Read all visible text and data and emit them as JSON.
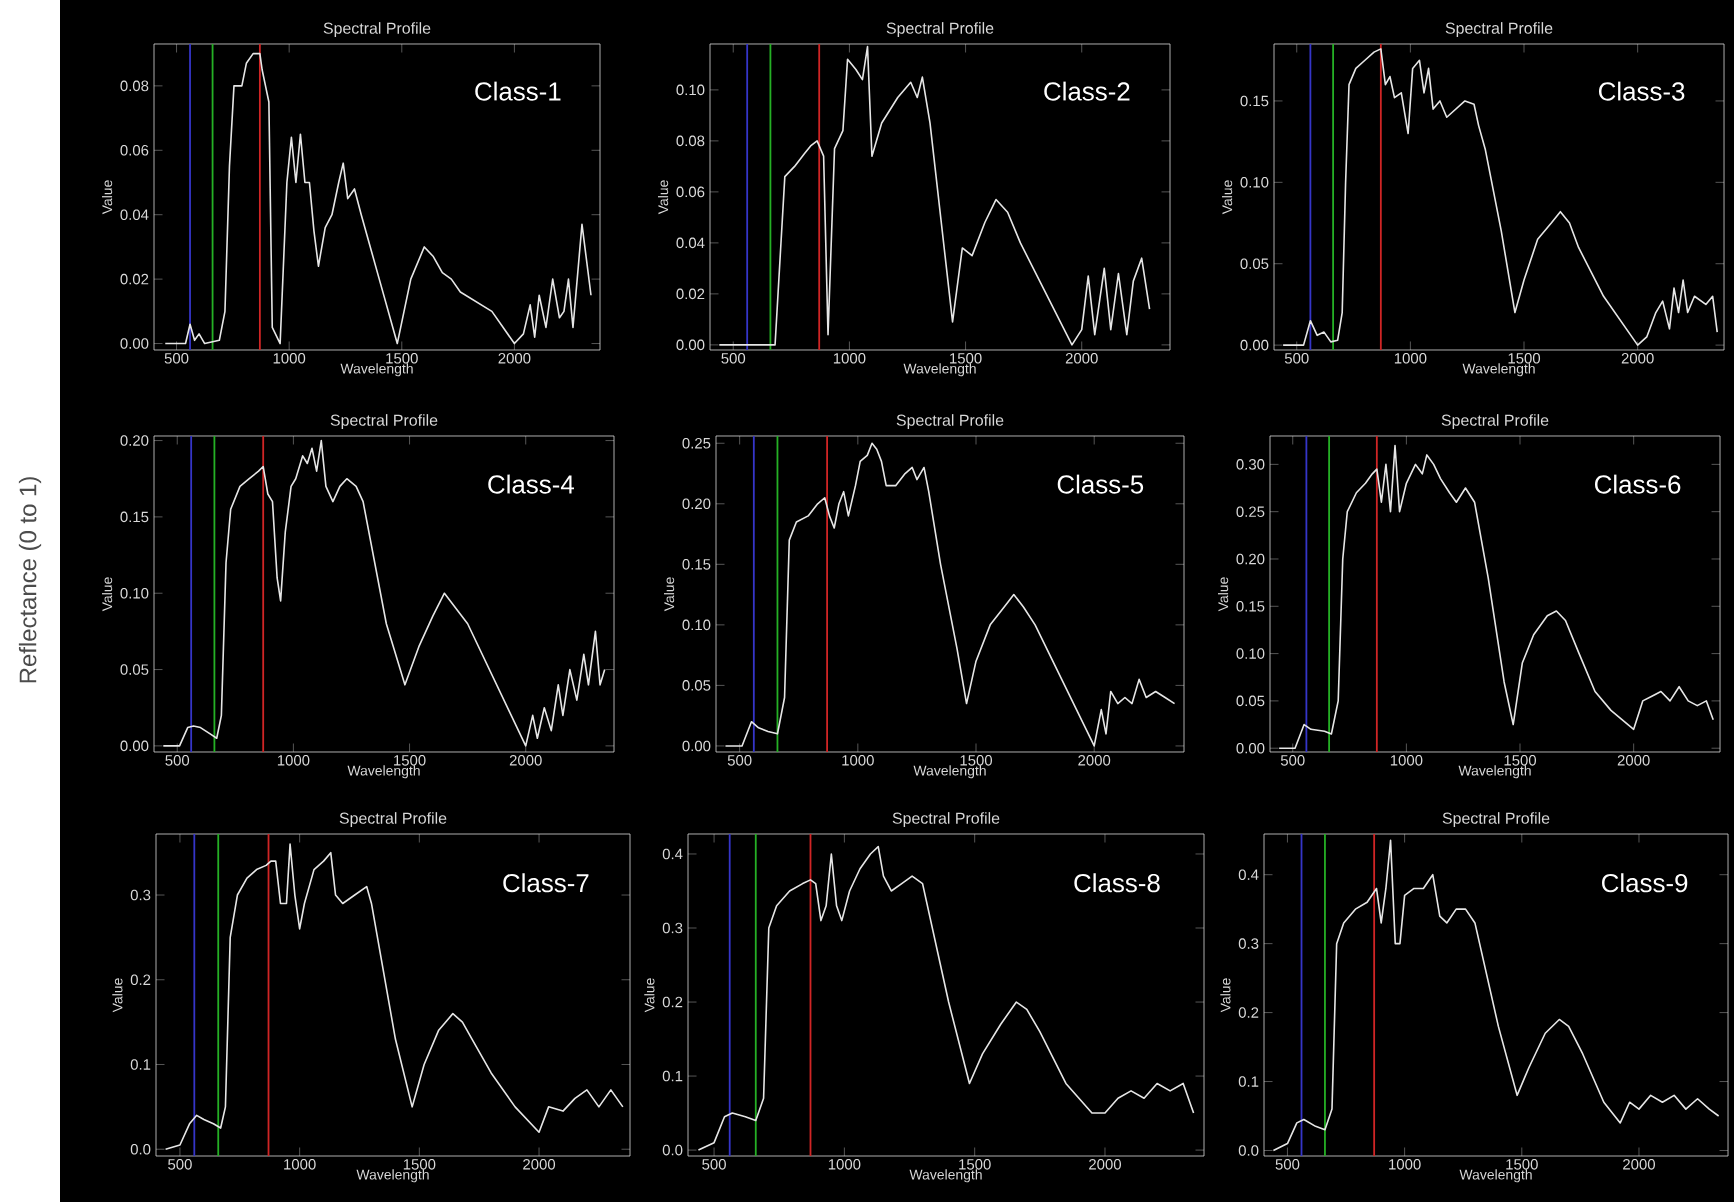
{
  "chart_data": [
    {
      "type": "other",
      "ylabel": "Reflectance (0 to 1)"
    },
    {
      "type": "line",
      "title": "Spectral Profile",
      "xlabel": "Wavelength",
      "ylabel": "Value",
      "annotations": [
        "Class-1"
      ],
      "xlim": [
        400,
        2380
      ],
      "ylim": [
        -0.002,
        0.093
      ],
      "xticks": [
        500,
        1000,
        1500,
        2000
      ],
      "yticks": [
        {
          "value": 0,
          "label": "0.00"
        },
        {
          "value": 0.02,
          "label": "0.02"
        },
        {
          "value": 0.04,
          "label": "0.04"
        },
        {
          "value": 0.06,
          "label": "0.06"
        },
        {
          "value": 0.08,
          "label": "0.08"
        }
      ],
      "ref_lines": [
        {
          "axis": "x",
          "value": 560,
          "color": "#3535c8"
        },
        {
          "axis": "x",
          "value": 660,
          "color": "#25b025"
        },
        {
          "axis": "x",
          "value": 870,
          "color": "#d02525"
        }
      ],
      "x": [
        450,
        540,
        560,
        580,
        600,
        625,
        690,
        715,
        735,
        755,
        790,
        810,
        840,
        870,
        880,
        895,
        910,
        925,
        960,
        990,
        1010,
        1030,
        1050,
        1070,
        1090,
        1110,
        1130,
        1160,
        1190,
        1220,
        1240,
        1260,
        1290,
        1320,
        1400,
        1480,
        1510,
        1540,
        1570,
        1600,
        1640,
        1680,
        1720,
        1760,
        1900,
        2000,
        2040,
        2070,
        2090,
        2110,
        2140,
        2170,
        2200,
        2220,
        2240,
        2260,
        2300,
        2340
      ],
      "series": [
        {
          "color": "#e6e6e6",
          "values": [
            0,
            0,
            0.006,
            0.001,
            0.003,
            0,
            0.001,
            0.01,
            0.055,
            0.08,
            0.08,
            0.087,
            0.09,
            0.09,
            0.085,
            0.08,
            0.075,
            0.005,
            0,
            0.05,
            0.064,
            0.05,
            0.065,
            0.05,
            0.05,
            0.035,
            0.024,
            0.036,
            0.04,
            0.05,
            0.056,
            0.045,
            0.048,
            0.04,
            0.02,
            0,
            0.01,
            0.02,
            0.025,
            0.03,
            0.027,
            0.022,
            0.02,
            0.016,
            0.01,
            0,
            0.003,
            0.012,
            0.002,
            0.015,
            0.005,
            0.02,
            0.008,
            0.01,
            0.02,
            0.005,
            0.037,
            0.015
          ]
        }
      ]
    },
    {
      "type": "line",
      "title": "Spectral Profile",
      "xlabel": "Wavelength",
      "ylabel": "Value",
      "annotations": [
        "Class-2"
      ],
      "xlim": [
        400,
        2380
      ],
      "ylim": [
        -0.002,
        0.118
      ],
      "xticks": [
        500,
        1000,
        1500,
        2000
      ],
      "yticks": [
        {
          "value": 0,
          "label": "0.00"
        },
        {
          "value": 0.02,
          "label": "0.02"
        },
        {
          "value": 0.04,
          "label": "0.04"
        },
        {
          "value": 0.06,
          "label": "0.06"
        },
        {
          "value": 0.08,
          "label": "0.08"
        },
        {
          "value": 0.1,
          "label": "0.10"
        }
      ],
      "ref_lines": [
        {
          "axis": "x",
          "value": 560,
          "color": "#3535c8"
        },
        {
          "axis": "x",
          "value": 660,
          "color": "#25b025"
        },
        {
          "axis": "x",
          "value": 870,
          "color": "#d02525"
        }
      ],
      "x": [
        440,
        680,
        722,
        764,
        806,
        833,
        861,
        889,
        908,
        936,
        972,
        992,
        1028,
        1056,
        1078,
        1097,
        1139,
        1208,
        1264,
        1292,
        1314,
        1347,
        1444,
        1486,
        1528,
        1583,
        1631,
        1681,
        1736,
        1958,
        2000,
        2028,
        2056,
        2097,
        2125,
        2158,
        2194,
        2222,
        2258,
        2292
      ],
      "series": [
        {
          "color": "#e6e6e6",
          "values": [
            0,
            0,
            0.066,
            0.07,
            0.075,
            0.078,
            0.08,
            0.074,
            0.004,
            0.077,
            0.084,
            0.112,
            0.108,
            0.104,
            0.117,
            0.074,
            0.087,
            0.097,
            0.103,
            0.097,
            0.105,
            0.087,
            0.009,
            0.038,
            0.035,
            0.048,
            0.057,
            0.052,
            0.04,
            0,
            0.006,
            0.027,
            0.004,
            0.03,
            0.006,
            0.028,
            0.004,
            0.025,
            0.034,
            0.014
          ]
        }
      ]
    },
    {
      "type": "line",
      "title": "Spectral Profile",
      "xlabel": "Wavelength",
      "ylabel": "Value",
      "annotations": [
        "Class-3"
      ],
      "xlim": [
        400,
        2380
      ],
      "ylim": [
        -0.003,
        0.185
      ],
      "xticks": [
        500,
        1000,
        1500,
        2000
      ],
      "yticks": [
        {
          "value": 0,
          "label": "0.00"
        },
        {
          "value": 0.05,
          "label": "0.05"
        },
        {
          "value": 0.1,
          "label": "0.10"
        },
        {
          "value": 0.15,
          "label": "0.15"
        }
      ],
      "ref_lines": [
        {
          "axis": "x",
          "value": 560,
          "color": "#3535c8"
        },
        {
          "axis": "x",
          "value": 660,
          "color": "#25b025"
        },
        {
          "axis": "x",
          "value": 870,
          "color": "#d02525"
        }
      ],
      "x": [
        440,
        530,
        560,
        590,
        620,
        650,
        680,
        700,
        715,
        730,
        760,
        800,
        840,
        870,
        890,
        910,
        930,
        960,
        990,
        1010,
        1040,
        1060,
        1080,
        1100,
        1130,
        1160,
        1200,
        1240,
        1280,
        1300,
        1330,
        1400,
        1460,
        1500,
        1560,
        1620,
        1660,
        1700,
        1740,
        1850,
        2000,
        2040,
        2080,
        2110,
        2140,
        2160,
        2180,
        2200,
        2220,
        2250,
        2300,
        2330,
        2350
      ],
      "series": [
        {
          "color": "#e6e6e6",
          "values": [
            0,
            0,
            0.015,
            0.006,
            0.008,
            0.002,
            0.003,
            0.02,
            0.1,
            0.16,
            0.17,
            0.175,
            0.18,
            0.182,
            0.16,
            0.165,
            0.152,
            0.155,
            0.13,
            0.17,
            0.175,
            0.155,
            0.17,
            0.145,
            0.15,
            0.14,
            0.145,
            0.15,
            0.148,
            0.135,
            0.12,
            0.07,
            0.02,
            0.04,
            0.065,
            0.075,
            0.082,
            0.075,
            0.06,
            0.03,
            0,
            0.005,
            0.02,
            0.027,
            0.01,
            0.035,
            0.02,
            0.04,
            0.02,
            0.03,
            0.025,
            0.03,
            0.008
          ]
        }
      ]
    },
    {
      "type": "line",
      "title": "Spectral Profile",
      "xlabel": "Wavelength",
      "ylabel": "Value",
      "annotations": [
        "Class-4"
      ],
      "xlim": [
        400,
        2380
      ],
      "ylim": [
        -0.004,
        0.203
      ],
      "xticks": [
        500,
        1000,
        1500,
        2000
      ],
      "yticks": [
        {
          "value": 0,
          "label": "0.00"
        },
        {
          "value": 0.05,
          "label": "0.05"
        },
        {
          "value": 0.1,
          "label": "0.10"
        },
        {
          "value": 0.15,
          "label": "0.15"
        },
        {
          "value": 0.2,
          "label": "0.20"
        }
      ],
      "ref_lines": [
        {
          "axis": "x",
          "value": 560,
          "color": "#3535c8"
        },
        {
          "axis": "x",
          "value": 660,
          "color": "#25b025"
        },
        {
          "axis": "x",
          "value": 870,
          "color": "#d02525"
        }
      ],
      "x": [
        440,
        510,
        545,
        570,
        600,
        640,
        670,
        690,
        710,
        730,
        770,
        810,
        850,
        870,
        890,
        910,
        930,
        945,
        965,
        990,
        1010,
        1040,
        1060,
        1080,
        1100,
        1120,
        1140,
        1170,
        1200,
        1230,
        1270,
        1300,
        1400,
        1480,
        1540,
        1600,
        1650,
        1700,
        1750,
        2000,
        2030,
        2050,
        2080,
        2110,
        2140,
        2160,
        2190,
        2220,
        2250,
        2270,
        2300,
        2320,
        2340
      ],
      "series": [
        {
          "color": "#e6e6e6",
          "values": [
            0,
            0,
            0.012,
            0.013,
            0.012,
            0.008,
            0.005,
            0.02,
            0.12,
            0.155,
            0.17,
            0.175,
            0.18,
            0.183,
            0.165,
            0.16,
            0.11,
            0.095,
            0.14,
            0.17,
            0.175,
            0.19,
            0.185,
            0.195,
            0.18,
            0.2,
            0.17,
            0.16,
            0.17,
            0.175,
            0.17,
            0.16,
            0.08,
            0.04,
            0.065,
            0.085,
            0.1,
            0.09,
            0.08,
            0,
            0.02,
            0.005,
            0.025,
            0.01,
            0.04,
            0.02,
            0.05,
            0.03,
            0.06,
            0.04,
            0.075,
            0.04,
            0.05
          ]
        }
      ]
    },
    {
      "type": "line",
      "title": "Spectral Profile",
      "xlabel": "Wavelength",
      "ylabel": "Value",
      "annotations": [
        "Class-5"
      ],
      "xlim": [
        400,
        2380
      ],
      "ylim": [
        -0.005,
        0.256
      ],
      "xticks": [
        500,
        1000,
        1500,
        2000
      ],
      "yticks": [
        {
          "value": 0,
          "label": "0.00"
        },
        {
          "value": 0.05,
          "label": "0.05"
        },
        {
          "value": 0.1,
          "label": "0.10"
        },
        {
          "value": 0.15,
          "label": "0.15"
        },
        {
          "value": 0.2,
          "label": "0.20"
        },
        {
          "value": 0.25,
          "label": "0.25"
        }
      ],
      "ref_lines": [
        {
          "axis": "x",
          "value": 560,
          "color": "#3535c8"
        },
        {
          "axis": "x",
          "value": 660,
          "color": "#25b025"
        },
        {
          "axis": "x",
          "value": 870,
          "color": "#d02525"
        }
      ],
      "x": [
        440,
        510,
        550,
        580,
        620,
        660,
        690,
        710,
        740,
        790,
        830,
        860,
        880,
        900,
        920,
        940,
        960,
        990,
        1010,
        1040,
        1060,
        1080,
        1100,
        1120,
        1160,
        1200,
        1230,
        1250,
        1280,
        1300,
        1350,
        1420,
        1460,
        1500,
        1560,
        1620,
        1660,
        1700,
        1750,
        2000,
        2030,
        2050,
        2070,
        2100,
        2130,
        2160,
        2190,
        2220,
        2260,
        2300,
        2340
      ],
      "series": [
        {
          "color": "#e6e6e6",
          "values": [
            0,
            0,
            0.02,
            0.015,
            0.012,
            0.01,
            0.04,
            0.17,
            0.185,
            0.19,
            0.2,
            0.205,
            0.19,
            0.18,
            0.2,
            0.21,
            0.19,
            0.215,
            0.235,
            0.24,
            0.25,
            0.245,
            0.235,
            0.215,
            0.215,
            0.225,
            0.23,
            0.22,
            0.23,
            0.21,
            0.15,
            0.08,
            0.035,
            0.07,
            0.1,
            0.115,
            0.125,
            0.115,
            0.1,
            0,
            0.03,
            0.01,
            0.045,
            0.035,
            0.04,
            0.035,
            0.055,
            0.04,
            0.045,
            0.04,
            0.035
          ]
        }
      ]
    },
    {
      "type": "line",
      "title": "Spectral Profile",
      "xlabel": "Wavelength",
      "ylabel": "Value",
      "annotations": [
        "Class-6"
      ],
      "xlim": [
        400,
        2380
      ],
      "ylim": [
        -0.004,
        0.33
      ],
      "xticks": [
        500,
        1000,
        1500,
        2000
      ],
      "yticks": [
        {
          "value": 0,
          "label": "0.00"
        },
        {
          "value": 0.05,
          "label": "0.05"
        },
        {
          "value": 0.1,
          "label": "0.10"
        },
        {
          "value": 0.15,
          "label": "0.15"
        },
        {
          "value": 0.2,
          "label": "0.20"
        },
        {
          "value": 0.25,
          "label": "0.25"
        },
        {
          "value": 0.3,
          "label": "0.30"
        }
      ],
      "ref_lines": [
        {
          "axis": "x",
          "value": 560,
          "color": "#3535c8"
        },
        {
          "axis": "x",
          "value": 660,
          "color": "#25b025"
        },
        {
          "axis": "x",
          "value": 870,
          "color": "#d02525"
        }
      ],
      "x": [
        440,
        510,
        550,
        580,
        640,
        670,
        700,
        720,
        740,
        780,
        820,
        850,
        870,
        890,
        910,
        930,
        950,
        970,
        1000,
        1040,
        1070,
        1090,
        1120,
        1150,
        1190,
        1220,
        1260,
        1300,
        1360,
        1430,
        1470,
        1510,
        1560,
        1620,
        1660,
        1700,
        1760,
        1830,
        1900,
        2000,
        2040,
        2080,
        2120,
        2160,
        2200,
        2240,
        2280,
        2320,
        2350
      ],
      "series": [
        {
          "color": "#e6e6e6",
          "values": [
            0,
            0,
            0.025,
            0.02,
            0.018,
            0.015,
            0.05,
            0.2,
            0.25,
            0.27,
            0.28,
            0.29,
            0.295,
            0.26,
            0.3,
            0.25,
            0.32,
            0.25,
            0.28,
            0.3,
            0.29,
            0.31,
            0.3,
            0.285,
            0.27,
            0.26,
            0.275,
            0.26,
            0.18,
            0.07,
            0.025,
            0.09,
            0.12,
            0.14,
            0.145,
            0.135,
            0.1,
            0.06,
            0.04,
            0.02,
            0.05,
            0.055,
            0.06,
            0.05,
            0.065,
            0.05,
            0.045,
            0.05,
            0.03
          ]
        }
      ]
    },
    {
      "type": "line",
      "title": "Spectral Profile",
      "xlabel": "Wavelength",
      "ylabel": "Value",
      "annotations": [
        "Class-7"
      ],
      "xlim": [
        400,
        2380
      ],
      "ylim": [
        -0.008,
        0.372
      ],
      "xticks": [
        500,
        1000,
        1500,
        2000
      ],
      "yticks": [
        {
          "value": 0,
          "label": "0.0"
        },
        {
          "value": 0.1,
          "label": "0.1"
        },
        {
          "value": 0.2,
          "label": "0.2"
        },
        {
          "value": 0.3,
          "label": "0.3"
        }
      ],
      "ref_lines": [
        {
          "axis": "x",
          "value": 560,
          "color": "#3535c8"
        },
        {
          "axis": "x",
          "value": 660,
          "color": "#25b025"
        },
        {
          "axis": "x",
          "value": 870,
          "color": "#d02525"
        }
      ],
      "x": [
        440,
        500,
        540,
        570,
        600,
        640,
        670,
        690,
        710,
        740,
        780,
        820,
        860,
        880,
        900,
        920,
        945,
        960,
        980,
        1000,
        1020,
        1060,
        1100,
        1130,
        1150,
        1180,
        1230,
        1280,
        1300,
        1400,
        1470,
        1520,
        1580,
        1640,
        1680,
        1720,
        1800,
        1900,
        2000,
        2040,
        2100,
        2150,
        2200,
        2250,
        2300,
        2350
      ],
      "series": [
        {
          "color": "#e6e6e6",
          "values": [
            0,
            0.005,
            0.03,
            0.04,
            0.035,
            0.03,
            0.025,
            0.05,
            0.25,
            0.3,
            0.32,
            0.33,
            0.335,
            0.34,
            0.34,
            0.29,
            0.29,
            0.36,
            0.3,
            0.26,
            0.29,
            0.33,
            0.34,
            0.35,
            0.3,
            0.29,
            0.3,
            0.31,
            0.29,
            0.13,
            0.05,
            0.1,
            0.14,
            0.16,
            0.15,
            0.13,
            0.09,
            0.05,
            0.02,
            0.05,
            0.045,
            0.06,
            0.07,
            0.05,
            0.07,
            0.05
          ]
        }
      ]
    },
    {
      "type": "line",
      "title": "Spectral Profile",
      "xlabel": "Wavelength",
      "ylabel": "Value",
      "annotations": [
        "Class-8"
      ],
      "xlim": [
        400,
        2380
      ],
      "ylim": [
        -0.008,
        0.427
      ],
      "xticks": [
        500,
        1000,
        1500,
        2000
      ],
      "yticks": [
        {
          "value": 0,
          "label": "0.0"
        },
        {
          "value": 0.1,
          "label": "0.1"
        },
        {
          "value": 0.2,
          "label": "0.2"
        },
        {
          "value": 0.3,
          "label": "0.3"
        },
        {
          "value": 0.4,
          "label": "0.4"
        }
      ],
      "ref_lines": [
        {
          "axis": "x",
          "value": 560,
          "color": "#3535c8"
        },
        {
          "axis": "x",
          "value": 660,
          "color": "#25b025"
        },
        {
          "axis": "x",
          "value": 870,
          "color": "#d02525"
        }
      ],
      "x": [
        440,
        500,
        540,
        570,
        620,
        660,
        690,
        710,
        740,
        790,
        840,
        870,
        890,
        910,
        930,
        950,
        970,
        990,
        1020,
        1060,
        1100,
        1130,
        1150,
        1180,
        1220,
        1260,
        1300,
        1400,
        1480,
        1530,
        1600,
        1660,
        1700,
        1750,
        1850,
        1950,
        2000,
        2050,
        2100,
        2150,
        2200,
        2250,
        2300,
        2340
      ],
      "series": [
        {
          "color": "#e6e6e6",
          "values": [
            0,
            0.01,
            0.045,
            0.05,
            0.045,
            0.04,
            0.07,
            0.3,
            0.33,
            0.35,
            0.36,
            0.365,
            0.36,
            0.31,
            0.33,
            0.4,
            0.33,
            0.31,
            0.35,
            0.38,
            0.4,
            0.41,
            0.37,
            0.35,
            0.36,
            0.37,
            0.36,
            0.2,
            0.09,
            0.13,
            0.17,
            0.2,
            0.19,
            0.16,
            0.09,
            0.05,
            0.05,
            0.07,
            0.08,
            0.07,
            0.09,
            0.08,
            0.09,
            0.05
          ]
        }
      ]
    },
    {
      "type": "line",
      "title": "Spectral Profile",
      "xlabel": "Wavelength",
      "ylabel": "Value",
      "annotations": [
        "Class-9"
      ],
      "xlim": [
        400,
        2380
      ],
      "ylim": [
        -0.008,
        0.459
      ],
      "xticks": [
        500,
        1000,
        1500,
        2000
      ],
      "yticks": [
        {
          "value": 0,
          "label": "0.0"
        },
        {
          "value": 0.1,
          "label": "0.1"
        },
        {
          "value": 0.2,
          "label": "0.2"
        },
        {
          "value": 0.3,
          "label": "0.3"
        },
        {
          "value": 0.4,
          "label": "0.4"
        }
      ],
      "ref_lines": [
        {
          "axis": "x",
          "value": 560,
          "color": "#3535c8"
        },
        {
          "axis": "x",
          "value": 660,
          "color": "#25b025"
        },
        {
          "axis": "x",
          "value": 870,
          "color": "#d02525"
        }
      ],
      "x": [
        440,
        500,
        540,
        570,
        620,
        660,
        690,
        710,
        740,
        790,
        840,
        880,
        900,
        920,
        940,
        960,
        980,
        1000,
        1040,
        1080,
        1120,
        1150,
        1180,
        1220,
        1260,
        1300,
        1400,
        1480,
        1530,
        1600,
        1660,
        1700,
        1760,
        1850,
        1920,
        1960,
        2000,
        2050,
        2100,
        2150,
        2200,
        2250,
        2300,
        2340
      ],
      "series": [
        {
          "color": "#e6e6e6",
          "values": [
            0,
            0.01,
            0.04,
            0.045,
            0.035,
            0.03,
            0.06,
            0.3,
            0.33,
            0.35,
            0.36,
            0.38,
            0.33,
            0.38,
            0.45,
            0.3,
            0.3,
            0.37,
            0.38,
            0.38,
            0.4,
            0.34,
            0.33,
            0.35,
            0.35,
            0.33,
            0.18,
            0.08,
            0.12,
            0.17,
            0.19,
            0.18,
            0.14,
            0.07,
            0.04,
            0.07,
            0.06,
            0.08,
            0.07,
            0.08,
            0.06,
            0.075,
            0.06,
            0.05
          ]
        }
      ]
    }
  ]
}
